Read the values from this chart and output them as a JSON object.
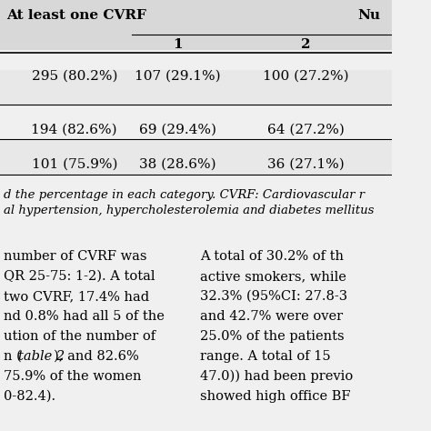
{
  "bg_color": "#f0f0f0",
  "table_header_row": [
    "At least one CVRF",
    "",
    "Nu"
  ],
  "sub_header": [
    "",
    "1",
    "2"
  ],
  "rows": [
    [
      "295 (80.2%)",
      "107 (29.1%)",
      "100 (27.2%)"
    ],
    [
      "194 (82.6%)",
      "69 (29.4%)",
      "64 (27.2%)"
    ],
    [
      "101 (75.9%)",
      "38 (28.6%)",
      "36 (27.1%)"
    ]
  ],
  "footnote_lines": [
    "d the percentage in each category. CVRF: Cardiovascular r",
    "al hypertension, hypercholesterolemia and diabetes mellitus"
  ],
  "body_left_lines": [
    "number of CVRF was",
    "QR 25-75: 1-2). A total",
    "two CVRF, 17.4% had",
    "nd 0.8% had all 5 of the",
    "ution of the number of",
    "n (table 2), and 82.6%",
    "75.9% of the women",
    "0-82.4)."
  ],
  "body_right_lines": [
    "A total of 30.2% of th",
    "active smokers, while",
    "32.3% (95%CI: 27.8-3",
    "and 42.7% were over",
    "25.0% of the patients",
    "range. A total of 15",
    "47.0)) had been previo",
    "showed high office BF"
  ]
}
